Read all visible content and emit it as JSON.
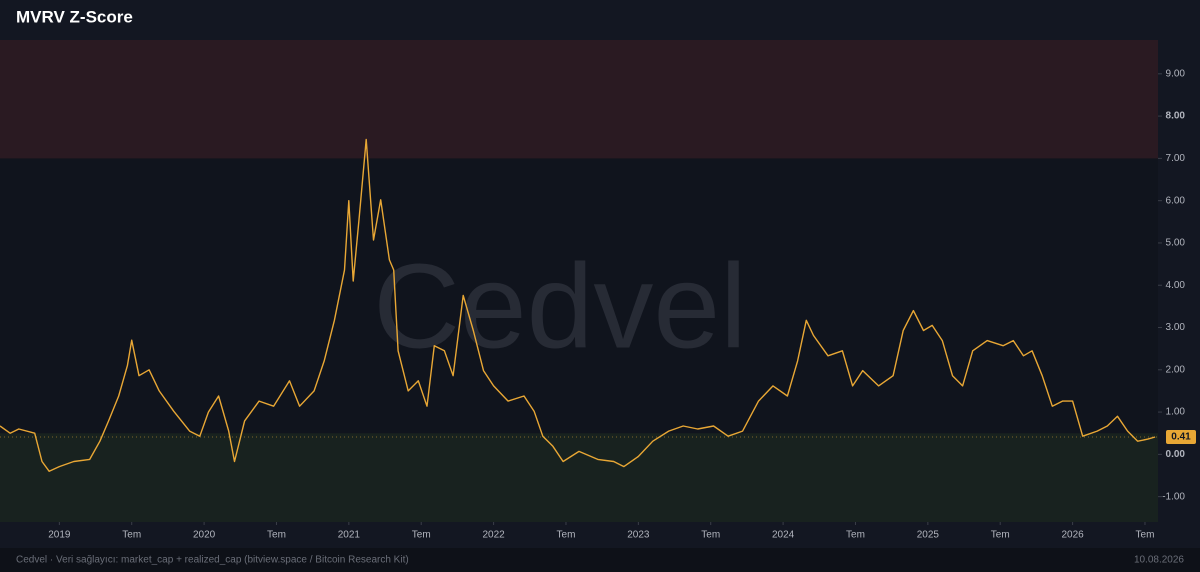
{
  "chart_data": {
    "type": "line",
    "title": "MVRV Z-Score",
    "watermark": "Cedvel",
    "footer": "Cedvel · Veri sağlayıcı: market_cap + realized_cap (bitview.space / Bitcoin Research Kit)",
    "date": "10.08.2026",
    "xlim": [
      2018.59,
      2026.59
    ],
    "ylim": [
      -1.6,
      9.8
    ],
    "xticks": [
      2019,
      {
        "value": 2019.5,
        "label": "Tem"
      },
      2020,
      {
        "value": 2020.5,
        "label": "Tem"
      },
      2021,
      {
        "value": 2021.5,
        "label": "Tem"
      },
      2022,
      {
        "value": 2022.5,
        "label": "Tem"
      },
      2023,
      {
        "value": 2023.5,
        "label": "Tem"
      },
      2024,
      {
        "value": 2024.5,
        "label": "Tem"
      },
      2025,
      {
        "value": 2025.5,
        "label": "Tem"
      },
      2026,
      {
        "value": 2026.5,
        "label": "Tem"
      }
    ],
    "yticks": [
      {
        "value": -1,
        "label": "-1.00"
      },
      {
        "value": 0,
        "label": "0.00"
      },
      {
        "value": 1,
        "label": "1.00"
      },
      {
        "value": 2,
        "label": "2.00"
      },
      {
        "value": 3,
        "label": "3.00"
      },
      {
        "value": 4,
        "label": "4.00"
      },
      {
        "value": 5,
        "label": "5.00"
      },
      {
        "value": 6,
        "label": "6.00"
      },
      {
        "value": 7,
        "label": "7.00"
      },
      {
        "value": 8,
        "label": "8.00"
      },
      {
        "value": 9,
        "label": "9.00"
      }
    ],
    "upper_zone": {
      "from": 7,
      "color": "#2a1a22"
    },
    "lower_zone": {
      "to": 0.5,
      "color": "#18221f"
    },
    "x": [
      2018.59,
      2018.66,
      2018.72,
      2018.83,
      2018.88,
      2018.93,
      2019.0,
      2019.1,
      2019.21,
      2019.28,
      2019.34,
      2019.41,
      2019.47,
      2019.5,
      2019.55,
      2019.62,
      2019.69,
      2019.79,
      2019.9,
      2019.97,
      2020.03,
      2020.1,
      2020.17,
      2020.21,
      2020.28,
      2020.38,
      2020.48,
      2020.59,
      2020.66,
      2020.76,
      2020.83,
      2020.9,
      2020.97,
      2021.0,
      2021.03,
      2021.07,
      2021.12,
      2021.17,
      2021.22,
      2021.28,
      2021.31,
      2021.34,
      2021.41,
      2021.48,
      2021.54,
      2021.59,
      2021.66,
      2021.72,
      2021.79,
      2021.86,
      2021.93,
      2022.0,
      2022.1,
      2022.21,
      2022.28,
      2022.34,
      2022.41,
      2022.48,
      2022.59,
      2022.72,
      2022.83,
      2022.9,
      2023.0,
      2023.1,
      2023.21,
      2023.31,
      2023.41,
      2023.52,
      2023.62,
      2023.72,
      2023.83,
      2023.93,
      2024.03,
      2024.1,
      2024.16,
      2024.21,
      2024.31,
      2024.41,
      2024.48,
      2024.55,
      2024.66,
      2024.76,
      2024.83,
      2024.9,
      2024.97,
      2025.03,
      2025.1,
      2025.17,
      2025.24,
      2025.31,
      2025.41,
      2025.52,
      2025.59,
      2025.66,
      2025.72,
      2025.79,
      2025.86,
      2025.93,
      2026.0,
      2026.07,
      2026.17,
      2026.24,
      2026.31,
      2026.38,
      2026.45,
      2026.52,
      2026.57
    ],
    "series": [
      {
        "name": "MVRV Z-Score",
        "color": "#e8a735",
        "values": [
          0.67,
          0.5,
          0.6,
          0.5,
          -0.17,
          -0.4,
          -0.29,
          -0.17,
          -0.12,
          0.31,
          0.79,
          1.38,
          2.1,
          2.7,
          1.86,
          2.0,
          1.5,
          1.02,
          0.55,
          0.43,
          1.0,
          1.38,
          0.55,
          -0.17,
          0.79,
          1.26,
          1.14,
          1.74,
          1.14,
          1.5,
          2.21,
          3.17,
          4.36,
          6.0,
          4.1,
          5.55,
          7.45,
          5.07,
          6.02,
          4.6,
          4.36,
          2.45,
          1.5,
          1.74,
          1.14,
          2.57,
          2.45,
          1.86,
          3.76,
          2.93,
          1.98,
          1.62,
          1.26,
          1.38,
          1.02,
          0.43,
          0.19,
          -0.17,
          0.07,
          -0.12,
          -0.17,
          -0.29,
          -0.05,
          0.31,
          0.55,
          0.67,
          0.6,
          0.67,
          0.43,
          0.55,
          1.26,
          1.62,
          1.38,
          2.21,
          3.17,
          2.81,
          2.33,
          2.45,
          1.62,
          1.98,
          1.62,
          1.86,
          2.93,
          3.4,
          2.93,
          3.05,
          2.69,
          1.86,
          1.62,
          2.45,
          2.69,
          2.57,
          2.69,
          2.33,
          2.45,
          1.86,
          1.14,
          1.26,
          1.26,
          0.43,
          0.55,
          0.67,
          0.9,
          0.55,
          0.31,
          0.36,
          0.41
        ]
      }
    ]
  }
}
